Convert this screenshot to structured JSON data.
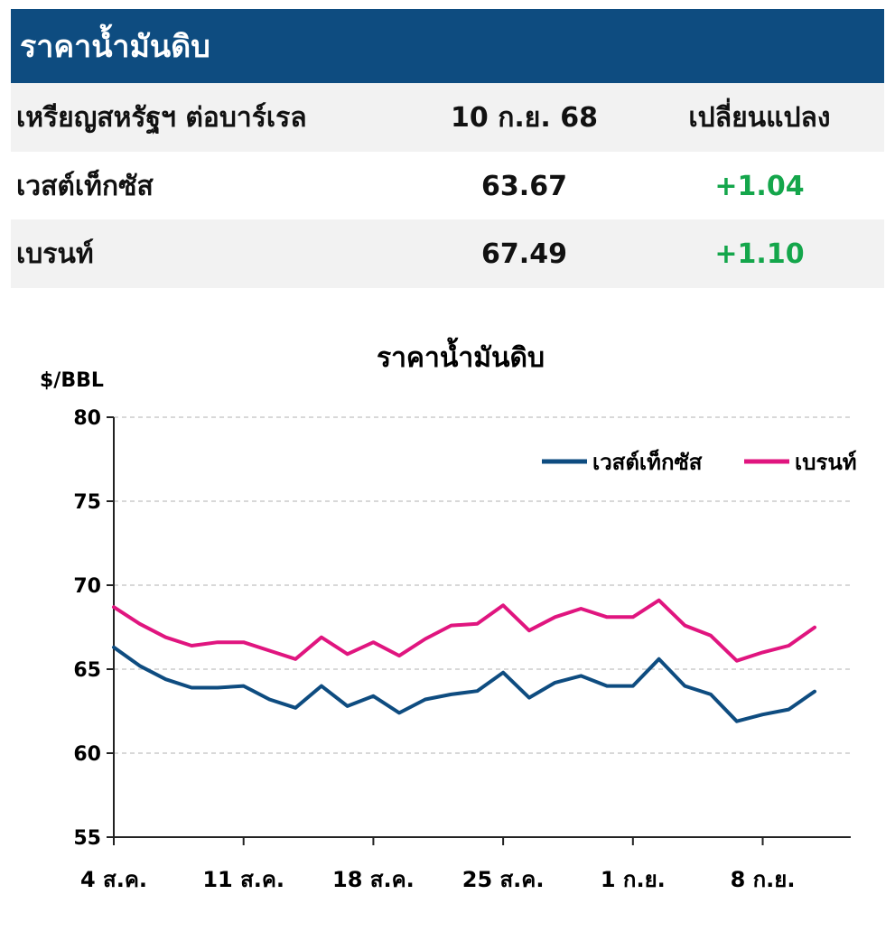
{
  "header": {
    "title": "ราคาน้ำมันดิบ"
  },
  "table": {
    "columns": [
      "เหรียญสหรัฐฯ ต่อบาร์เรล",
      "10 ก.ย. 68",
      "เปลี่ยนแปลง"
    ],
    "rows": [
      {
        "name": "เวสต์เท็กซัส",
        "price": "63.67",
        "change": "+1.04"
      },
      {
        "name": "เบรนท์",
        "price": "67.49",
        "change": "+1.10"
      }
    ]
  },
  "colors": {
    "header_bg": "#0e4c80",
    "wti": "#0e4c80",
    "brent": "#e0157f",
    "positive": "#14a64b",
    "grid": "#cccccc"
  },
  "chart_data": {
    "type": "line",
    "title": "ราคาน้ำมันดิบ",
    "ylabel": "$/BBL",
    "ylim": [
      55,
      80
    ],
    "yticks": [
      55,
      60,
      65,
      70,
      75,
      80
    ],
    "x": [
      "4 ส.ค.",
      "5 ส.ค.",
      "6 ส.ค.",
      "7 ส.ค.",
      "8 ส.ค.",
      "11 ส.ค.",
      "12 ส.ค.",
      "13 ส.ค.",
      "14 ส.ค.",
      "15 ส.ค.",
      "18 ส.ค.",
      "19 ส.ค.",
      "20 ส.ค.",
      "21 ส.ค.",
      "22 ส.ค.",
      "25 ส.ค.",
      "26 ส.ค.",
      "27 ส.ค.",
      "28 ส.ค.",
      "29 ส.ค.",
      "1 ก.ย.",
      "2 ก.ย.",
      "3 ก.ย.",
      "4 ก.ย.",
      "5 ก.ย.",
      "8 ก.ย.",
      "9 ก.ย.",
      "10 ก.ย."
    ],
    "xticks": [
      "4 ส.ค.",
      "11 ส.ค.",
      "18 ส.ค.",
      "25 ส.ค.",
      "1 ก.ย.",
      "8 ก.ย."
    ],
    "series": [
      {
        "name": "เวสต์เท็กซัส",
        "values": [
          66.3,
          65.2,
          64.4,
          63.9,
          63.9,
          64.0,
          63.2,
          62.7,
          64.0,
          62.8,
          63.4,
          62.4,
          63.2,
          63.5,
          63.7,
          64.8,
          63.3,
          64.2,
          64.6,
          64.0,
          64.0,
          65.6,
          64.0,
          63.5,
          61.9,
          62.3,
          62.6,
          63.67
        ]
      },
      {
        "name": "เบรนท์",
        "values": [
          68.7,
          67.7,
          66.9,
          66.4,
          66.6,
          66.6,
          66.1,
          65.6,
          66.9,
          65.9,
          66.6,
          65.8,
          66.8,
          67.6,
          67.7,
          68.8,
          67.3,
          68.1,
          68.6,
          68.1,
          68.1,
          69.1,
          67.6,
          67.0,
          65.5,
          66.0,
          66.4,
          67.49
        ]
      }
    ],
    "legend": "top-right"
  }
}
